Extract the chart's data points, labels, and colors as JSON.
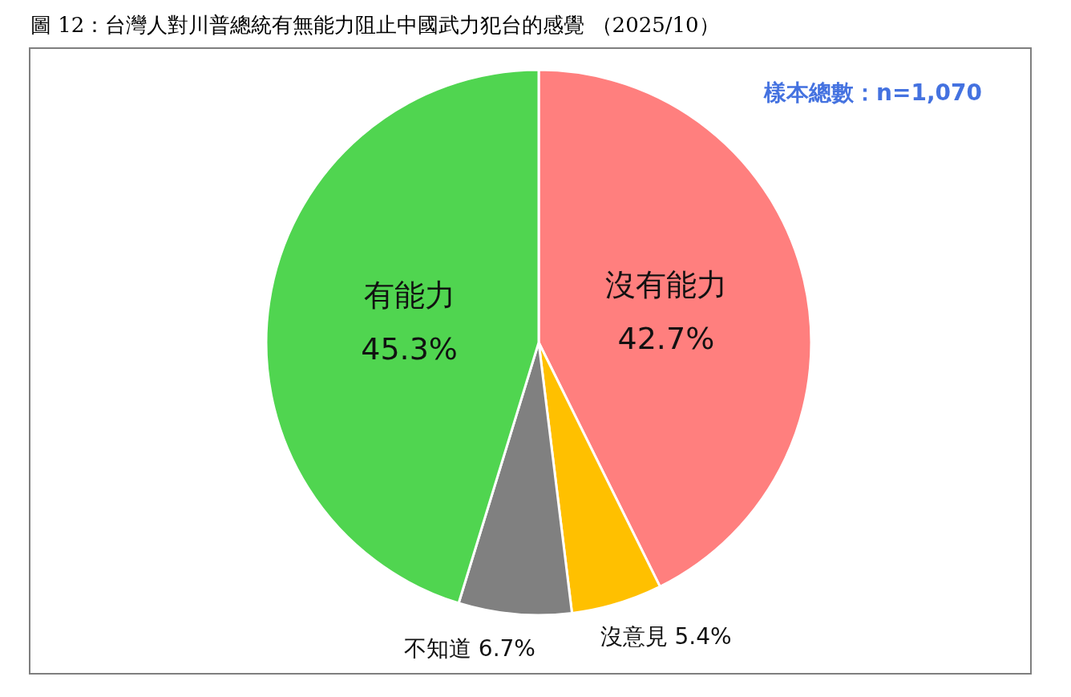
{
  "chart_data": {
    "type": "pie",
    "title": "圖 12：台灣人對川普總統有無能力阻止中國武力犯台的感覺 （2025/10）",
    "annotations": [
      "樣本總數：n=1,070"
    ],
    "categories": [
      "沒有能力",
      "沒意見",
      "不知道",
      "有能力"
    ],
    "values": [
      42.7,
      5.4,
      6.7,
      45.3
    ],
    "value_labels": [
      "42.7%",
      "5.4%",
      "6.7%",
      "45.3%"
    ],
    "colors": [
      "#ff7f7e",
      "#ffc000",
      "#808080",
      "#50d550"
    ]
  }
}
